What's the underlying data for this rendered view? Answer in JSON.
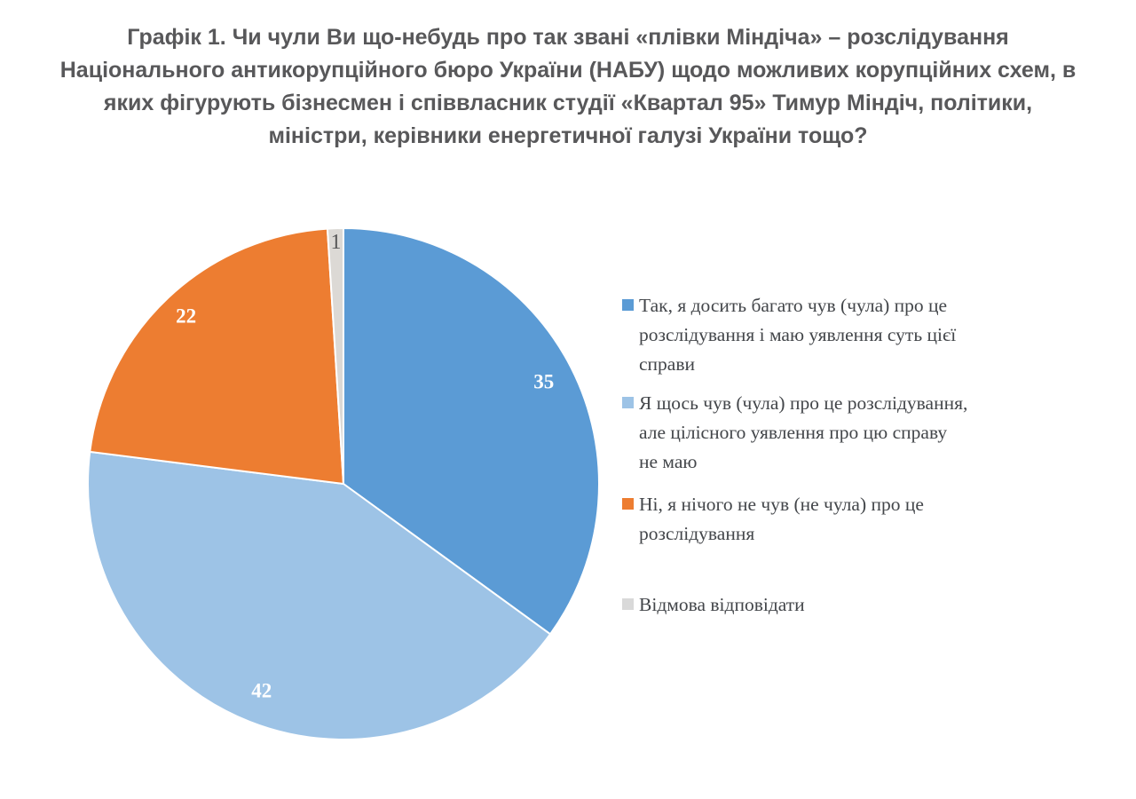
{
  "title": {
    "text": "Графік 1. Чи чули Ви що-небудь про так звані «плівки Міндіча» – розслідування\nНаціонального антикорупційного бюро України (НАБУ) щодо можливих корупційних схем, в\nяких фігурують бізнесмен і співвласник студії «Квартал 95» Тимур Міндіч, політики,\nміністри, керівники енергетичної галузі України тощо?"
  },
  "chart_data": {
    "type": "pie",
    "title": "Графік 1. Чи чули Ви що-небудь про так звані «плівки Міндіча» – розслідування Національного антикорупційного бюро України (НАБУ) щодо можливих корупційних схем, в яких фігурують бізнесмен і співвласник студії «Квартал 95» Тимур Міндіч, політики, міністри, керівники енергетичної галузі України тощо?",
    "categories": [
      "Так, я досить багато чув (чула) про це розслідування і маю уявлення суть цієї справи",
      "Я щось чув (чула) про це розслідування, але цілісного уявлення про цю справу не маю",
      "Ні, я нічого не чув (не чула) про це розслідування",
      "Відмова відповідати"
    ],
    "values": [
      35,
      42,
      22,
      1
    ],
    "unit": "percent",
    "start_angle_deg": 0,
    "direction": "clockwise",
    "legend_position": "right",
    "slices": [
      {
        "id": "yes-heard-a-lot",
        "value": 35,
        "color": "#5b9bd5",
        "label": "35",
        "label_color": "#ffffff",
        "label_bold": true,
        "label_r": 0.88
      },
      {
        "id": "heard-something",
        "value": 42,
        "color": "#9dc3e6",
        "label": "42",
        "label_color": "#ffffff",
        "label_bold": true,
        "label_r": 0.87
      },
      {
        "id": "heard-nothing",
        "value": 22,
        "color": "#ed7d31",
        "label": "22",
        "label_color": "#ffffff",
        "label_bold": true,
        "label_r": 0.9
      },
      {
        "id": "refused",
        "value": 1,
        "color": "#dcd9d5",
        "label": "1",
        "label_color": "#595959",
        "label_bold": false,
        "label_r": 0.945
      }
    ]
  },
  "legend": {
    "items": [
      {
        "color": "#5b9bd5",
        "label": "Так, я досить багато чув (чула) про це\nрозслідування і маю уявлення суть цієї\nсправи"
      },
      {
        "color": "#9dc3e6",
        "label": "Я щось чув (чула) про це розслідування,\nале цілісного уявлення про цю справу\nне маю"
      },
      {
        "color": "#ed7d31",
        "label": "Ні, я нічого не чув (не чула) про це\nрозслідування"
      },
      {
        "color": "#d9d9d9",
        "label": "Відмова відповідати"
      }
    ]
  }
}
